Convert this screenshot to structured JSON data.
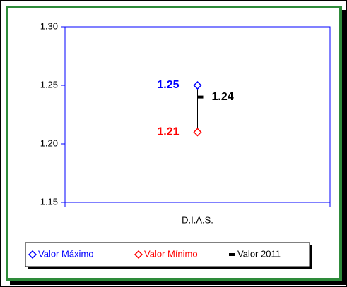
{
  "chart_data": {
    "type": "highlow",
    "categories": [
      "D.I.A.S."
    ],
    "series": [
      {
        "name": "Valor Máximo",
        "color": "#0000ff",
        "marker": "diamond",
        "values": [
          1.25
        ]
      },
      {
        "name": "Valor Mínimo",
        "color": "#ff0000",
        "marker": "diamond",
        "values": [
          1.21
        ]
      },
      {
        "name": "Valor 2011",
        "color": "#000000",
        "marker": "dash",
        "values": [
          1.24
        ]
      }
    ],
    "ylim": [
      1.15,
      1.3
    ],
    "yticks": [
      1.15,
      {
        "value": 1.2,
        "label": "1.20"
      },
      1.25,
      {
        "value": 1.3,
        "label": "1.30"
      }
    ],
    "legend": "bottom"
  }
}
